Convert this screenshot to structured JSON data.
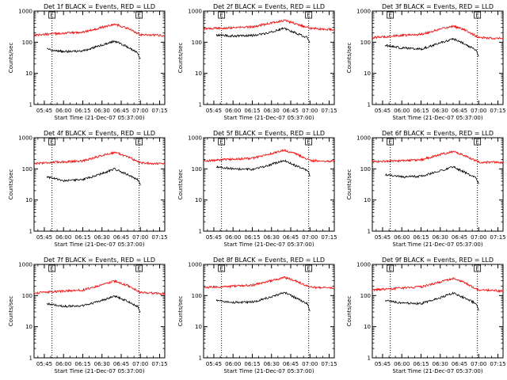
{
  "chart_data": [
    {
      "type": "line",
      "title": "Det 1f BLACK = Events, RED = LLD",
      "xlabel": "Start Time (21-Dec-07 05:37:00)",
      "ylabel": "Counts/sec",
      "yscale": "log",
      "ylim": [
        1,
        1000
      ],
      "yticks": [
        "1",
        "10",
        "100",
        "1000"
      ],
      "xlim": [
        "05:37",
        "07:19"
      ],
      "xticks": [
        "05:45",
        "06:00",
        "06:15",
        "06:30",
        "06:45",
        "07:00",
        "07:15"
      ],
      "markers": [
        "05:51",
        "06:59"
      ],
      "marker_labels": [
        "E",
        "E"
      ],
      "series": [
        {
          "color": "#ff0000",
          "x_range": [
            "05:37",
            "07:19"
          ],
          "keypoints": [
            [
              "05:37",
              170
            ],
            [
              "05:55",
              190
            ],
            [
              "06:15",
              210
            ],
            [
              "06:30",
              300
            ],
            [
              "06:40",
              380
            ],
            [
              "06:50",
              280
            ],
            [
              "07:00",
              175
            ],
            [
              "07:19",
              165
            ]
          ]
        },
        {
          "color": "#000000",
          "x_range": [
            "05:47",
            "07:00"
          ],
          "keypoints": [
            [
              "05:47",
              60
            ],
            [
              "06:00",
              50
            ],
            [
              "06:15",
              52
            ],
            [
              "06:25",
              70
            ],
            [
              "06:40",
              110
            ],
            [
              "06:50",
              70
            ],
            [
              "06:58",
              45
            ],
            [
              "07:00",
              28
            ]
          ]
        }
      ]
    },
    {
      "type": "line",
      "title": "Det 2f BLACK = Events, RED = LLD",
      "xlabel": "Start Time (21-Dec-07 05:37:00)",
      "ylabel": "Counts/sec",
      "yscale": "log",
      "ylim": [
        1,
        1000
      ],
      "yticks": [
        "1",
        "10",
        "100",
        "1000"
      ],
      "xlim": [
        "05:37",
        "07:19"
      ],
      "xticks": [
        "05:45",
        "06:00",
        "06:15",
        "06:30",
        "06:45",
        "07:00",
        "07:15"
      ],
      "markers": [
        "05:51",
        "06:59"
      ],
      "marker_labels": [
        "E",
        "E"
      ],
      "series": [
        {
          "color": "#ff0000",
          "x_range": [
            "05:37",
            "07:19"
          ],
          "keypoints": [
            [
              "05:37",
              270
            ],
            [
              "05:55",
              290
            ],
            [
              "06:15",
              310
            ],
            [
              "06:30",
              420
            ],
            [
              "06:40",
              500
            ],
            [
              "06:50",
              380
            ],
            [
              "07:00",
              280
            ],
            [
              "07:19",
              250
            ]
          ]
        },
        {
          "color": "#000000",
          "x_range": [
            "05:47",
            "07:00"
          ],
          "keypoints": [
            [
              "05:47",
              170
            ],
            [
              "06:00",
              160
            ],
            [
              "06:15",
              165
            ],
            [
              "06:25",
              190
            ],
            [
              "06:40",
              280
            ],
            [
              "06:50",
              190
            ],
            [
              "06:58",
              140
            ],
            [
              "07:00",
              100
            ]
          ]
        }
      ]
    },
    {
      "type": "line",
      "title": "Det 3f BLACK = Events, RED = LLD",
      "xlabel": "Start Time (21-Dec-07 05:37:00)",
      "ylabel": "Counts/sec",
      "yscale": "log",
      "ylim": [
        1,
        1000
      ],
      "yticks": [
        "1",
        "10",
        "100",
        "1000"
      ],
      "xlim": [
        "05:37",
        "07:19"
      ],
      "xticks": [
        "05:45",
        "06:00",
        "06:15",
        "06:30",
        "06:45",
        "07:00",
        "07:15"
      ],
      "markers": [
        "05:51",
        "06:59"
      ],
      "marker_labels": [
        "E",
        "E"
      ],
      "series": [
        {
          "color": "#ff0000",
          "x_range": [
            "05:37",
            "07:19"
          ],
          "keypoints": [
            [
              "05:37",
              140
            ],
            [
              "05:55",
              160
            ],
            [
              "06:15",
              180
            ],
            [
              "06:30",
              260
            ],
            [
              "06:40",
              330
            ],
            [
              "06:50",
              240
            ],
            [
              "07:00",
              140
            ],
            [
              "07:19",
              130
            ]
          ]
        },
        {
          "color": "#000000",
          "x_range": [
            "05:47",
            "07:00"
          ],
          "keypoints": [
            [
              "05:47",
              80
            ],
            [
              "06:00",
              65
            ],
            [
              "06:15",
              60
            ],
            [
              "06:25",
              80
            ],
            [
              "06:40",
              130
            ],
            [
              "06:50",
              85
            ],
            [
              "06:58",
              55
            ],
            [
              "07:00",
              35
            ]
          ]
        }
      ]
    },
    {
      "type": "line",
      "title": "Det 4f BLACK = Events, RED = LLD",
      "xlabel": "Start Time (21-Dec-07 05:37:00)",
      "ylabel": "Counts/sec",
      "yscale": "log",
      "ylim": [
        1,
        1000
      ],
      "yticks": [
        "1",
        "10",
        "100",
        "1000"
      ],
      "xlim": [
        "05:37",
        "07:19"
      ],
      "xticks": [
        "05:45",
        "06:00",
        "06:15",
        "06:30",
        "06:45",
        "07:00",
        "07:15"
      ],
      "markers": [
        "05:51",
        "06:59"
      ],
      "marker_labels": [
        "E",
        "E"
      ],
      "series": [
        {
          "color": "#ff0000",
          "x_range": [
            "05:37",
            "07:19"
          ],
          "keypoints": [
            [
              "05:37",
              150
            ],
            [
              "05:55",
              165
            ],
            [
              "06:15",
              180
            ],
            [
              "06:30",
              270
            ],
            [
              "06:40",
              340
            ],
            [
              "06:50",
              250
            ],
            [
              "07:00",
              155
            ],
            [
              "07:19",
              145
            ]
          ]
        },
        {
          "color": "#000000",
          "x_range": [
            "05:47",
            "07:00"
          ],
          "keypoints": [
            [
              "05:47",
              55
            ],
            [
              "06:00",
              42
            ],
            [
              "06:15",
              45
            ],
            [
              "06:25",
              60
            ],
            [
              "06:40",
              100
            ],
            [
              "06:50",
              65
            ],
            [
              "06:58",
              45
            ],
            [
              "07:00",
              30
            ]
          ]
        }
      ]
    },
    {
      "type": "line",
      "title": "Det 5f BLACK = Events, RED = LLD",
      "xlabel": "Start Time (21-Dec-07 05:37:00)",
      "ylabel": "Counts/sec",
      "yscale": "log",
      "ylim": [
        1,
        1000
      ],
      "yticks": [
        "1",
        "10",
        "100",
        "1000"
      ],
      "xlim": [
        "05:37",
        "07:19"
      ],
      "xticks": [
        "05:45",
        "06:00",
        "06:15",
        "06:30",
        "06:45",
        "07:00",
        "07:15"
      ],
      "markers": [
        "05:51",
        "06:59"
      ],
      "marker_labels": [
        "E",
        "E"
      ],
      "series": [
        {
          "color": "#ff0000",
          "x_range": [
            "05:37",
            "07:19"
          ],
          "keypoints": [
            [
              "05:37",
              180
            ],
            [
              "05:55",
              200
            ],
            [
              "06:15",
              220
            ],
            [
              "06:30",
              310
            ],
            [
              "06:40",
              400
            ],
            [
              "06:50",
              290
            ],
            [
              "07:00",
              185
            ],
            [
              "07:19",
              175
            ]
          ]
        },
        {
          "color": "#000000",
          "x_range": [
            "05:47",
            "07:00"
          ],
          "keypoints": [
            [
              "05:47",
              120
            ],
            [
              "06:00",
              100
            ],
            [
              "06:15",
              95
            ],
            [
              "06:25",
              120
            ],
            [
              "06:40",
              190
            ],
            [
              "06:50",
              120
            ],
            [
              "06:58",
              90
            ],
            [
              "07:00",
              60
            ]
          ]
        }
      ]
    },
    {
      "type": "line",
      "title": "Det 6f BLACK = Events, RED = LLD",
      "xlabel": "Start Time (21-Dec-07 05:37:00)",
      "ylabel": "Counts/sec",
      "yscale": "log",
      "ylim": [
        1,
        1000
      ],
      "yticks": [
        "1",
        "10",
        "100",
        "1000"
      ],
      "xlim": [
        "05:37",
        "07:19"
      ],
      "xticks": [
        "05:45",
        "06:00",
        "06:15",
        "06:30",
        "06:45",
        "07:00",
        "07:15"
      ],
      "markers": [
        "05:51",
        "06:59"
      ],
      "marker_labels": [
        "E",
        "E"
      ],
      "series": [
        {
          "color": "#ff0000",
          "x_range": [
            "05:37",
            "07:19"
          ],
          "keypoints": [
            [
              "05:37",
              170
            ],
            [
              "05:55",
              180
            ],
            [
              "06:15",
              195
            ],
            [
              "06:30",
              290
            ],
            [
              "06:40",
              360
            ],
            [
              "06:50",
              260
            ],
            [
              "07:00",
              165
            ],
            [
              "07:19",
              160
            ]
          ]
        },
        {
          "color": "#000000",
          "x_range": [
            "05:47",
            "07:00"
          ],
          "keypoints": [
            [
              "05:47",
              65
            ],
            [
              "06:00",
              55
            ],
            [
              "06:15",
              58
            ],
            [
              "06:25",
              75
            ],
            [
              "06:40",
              115
            ],
            [
              "06:50",
              75
            ],
            [
              "06:58",
              50
            ],
            [
              "07:00",
              35
            ]
          ]
        }
      ]
    },
    {
      "type": "line",
      "title": "Det 7f BLACK = Events, RED = LLD",
      "xlabel": "Start Time (21-Dec-07 05:37:00)",
      "ylabel": "Counts/sec",
      "yscale": "log",
      "ylim": [
        1,
        1000
      ],
      "yticks": [
        "1",
        "10",
        "100",
        "1000"
      ],
      "xlim": [
        "05:37",
        "07:19"
      ],
      "xticks": [
        "05:45",
        "06:00",
        "06:15",
        "06:30",
        "06:45",
        "07:00",
        "07:15"
      ],
      "markers": [
        "05:51",
        "06:59"
      ],
      "marker_labels": [
        "E",
        "E"
      ],
      "series": [
        {
          "color": "#ff0000",
          "x_range": [
            "05:37",
            "07:19"
          ],
          "keypoints": [
            [
              "05:37",
              120
            ],
            [
              "05:55",
              135
            ],
            [
              "06:15",
              150
            ],
            [
              "06:30",
              220
            ],
            [
              "06:40",
              290
            ],
            [
              "06:50",
              210
            ],
            [
              "07:00",
              125
            ],
            [
              "07:19",
              115
            ]
          ]
        },
        {
          "color": "#000000",
          "x_range": [
            "05:47",
            "07:00"
          ],
          "keypoints": [
            [
              "05:47",
              55
            ],
            [
              "06:00",
              45
            ],
            [
              "06:15",
              48
            ],
            [
              "06:25",
              60
            ],
            [
              "06:40",
              95
            ],
            [
              "06:50",
              65
            ],
            [
              "06:58",
              45
            ],
            [
              "07:00",
              28
            ]
          ]
        }
      ]
    },
    {
      "type": "line",
      "title": "Det 8f BLACK = Events, RED = LLD",
      "xlabel": "Start Time (21-Dec-07 05:37:00)",
      "ylabel": "Counts/sec",
      "yscale": "log",
      "ylim": [
        1,
        1000
      ],
      "yticks": [
        "1",
        "10",
        "100",
        "1000"
      ],
      "xlim": [
        "05:37",
        "07:19"
      ],
      "xticks": [
        "05:45",
        "06:00",
        "06:15",
        "06:30",
        "06:45",
        "07:00",
        "07:15"
      ],
      "markers": [
        "05:51",
        "06:59"
      ],
      "marker_labels": [
        "E",
        "E"
      ],
      "series": [
        {
          "color": "#ff0000",
          "x_range": [
            "05:37",
            "07:19"
          ],
          "keypoints": [
            [
              "05:37",
              180
            ],
            [
              "05:55",
              195
            ],
            [
              "06:15",
              215
            ],
            [
              "06:30",
              300
            ],
            [
              "06:40",
              380
            ],
            [
              "06:50",
              280
            ],
            [
              "07:00",
              185
            ],
            [
              "07:19",
              175
            ]
          ]
        },
        {
          "color": "#000000",
          "x_range": [
            "05:47",
            "07:00"
          ],
          "keypoints": [
            [
              "05:47",
              70
            ],
            [
              "06:00",
              60
            ],
            [
              "06:15",
              62
            ],
            [
              "06:25",
              80
            ],
            [
              "06:40",
              125
            ],
            [
              "06:50",
              80
            ],
            [
              "06:58",
              55
            ],
            [
              "07:00",
              30
            ]
          ]
        }
      ]
    },
    {
      "type": "line",
      "title": "Det 9f BLACK = Events, RED = LLD",
      "xlabel": "Start Time (21-Dec-07 05:37:00)",
      "ylabel": "Counts/sec",
      "yscale": "log",
      "ylim": [
        1,
        1000
      ],
      "yticks": [
        "1",
        "10",
        "100",
        "1000"
      ],
      "xlim": [
        "05:37",
        "07:19"
      ],
      "xticks": [
        "05:45",
        "06:00",
        "06:15",
        "06:30",
        "06:45",
        "07:00",
        "07:15"
      ],
      "markers": [
        "05:51",
        "06:59"
      ],
      "marker_labels": [
        "E",
        "E"
      ],
      "series": [
        {
          "color": "#ff0000",
          "x_range": [
            "05:37",
            "07:19"
          ],
          "keypoints": [
            [
              "05:37",
              150
            ],
            [
              "05:55",
              170
            ],
            [
              "06:15",
              190
            ],
            [
              "06:30",
              270
            ],
            [
              "06:40",
              350
            ],
            [
              "06:50",
              250
            ],
            [
              "07:00",
              150
            ],
            [
              "07:19",
              140
            ]
          ]
        },
        {
          "color": "#000000",
          "x_range": [
            "05:47",
            "07:00"
          ],
          "keypoints": [
            [
              "05:47",
              70
            ],
            [
              "06:00",
              58
            ],
            [
              "06:15",
              55
            ],
            [
              "06:25",
              72
            ],
            [
              "06:40",
              120
            ],
            [
              "06:50",
              80
            ],
            [
              "06:58",
              55
            ],
            [
              "07:00",
              32
            ]
          ]
        }
      ]
    }
  ]
}
